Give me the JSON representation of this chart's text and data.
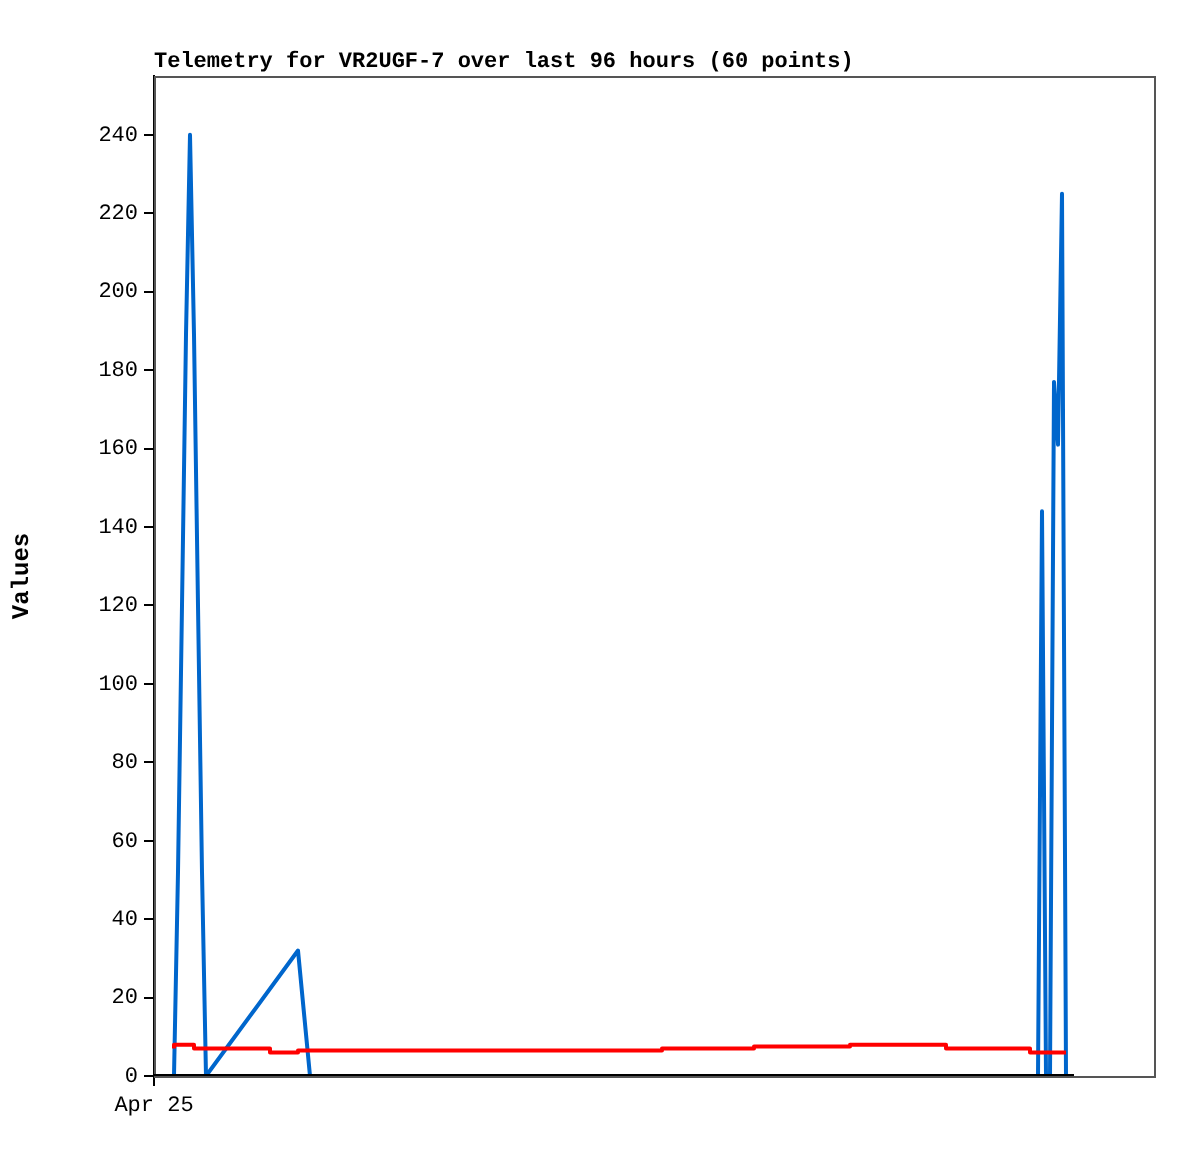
{
  "chart_data": {
    "type": "line",
    "title": "Telemetry for VR2UGF-7 over last 96 hours (60 points)",
    "ylabel": "Values",
    "categories": [
      "Apr 25",
      null,
      null,
      null,
      null,
      null,
      null,
      null,
      null,
      null,
      null,
      null,
      null,
      null,
      null,
      null,
      null,
      null,
      null,
      null,
      null,
      null,
      null,
      null,
      null,
      null,
      null,
      null,
      null,
      null,
      null,
      null,
      null,
      null,
      null,
      null,
      null,
      null,
      null,
      null,
      null,
      null,
      null,
      null,
      null,
      null,
      null,
      null,
      null,
      null,
      null,
      null,
      null,
      null,
      null,
      null,
      null,
      null,
      null,
      null,
      null,
      null,
      null,
      null,
      null,
      null,
      null,
      null,
      null,
      null,
      null,
      null,
      null,
      null,
      null,
      null,
      null,
      null,
      null,
      null,
      null,
      null,
      null,
      null,
      null,
      null,
      null,
      null,
      null,
      null,
      null,
      null,
      null,
      null,
      null,
      null,
      null,
      null,
      null,
      null,
      null,
      null,
      null,
      null,
      null,
      null,
      null,
      null,
      null,
      null,
      null,
      null,
      null,
      null,
      null,
      null,
      null,
      null,
      null,
      null,
      null,
      null,
      null,
      null,
      null,
      null,
      null,
      null,
      null,
      null,
      null,
      null,
      null,
      null,
      null,
      null,
      null,
      null,
      null,
      null,
      null,
      null,
      null,
      null,
      null,
      null,
      null,
      null,
      null,
      null,
      null,
      null,
      null,
      null,
      null,
      null,
      null,
      null,
      null,
      null,
      null,
      null,
      null,
      null,
      null,
      null,
      null,
      null,
      null,
      null,
      null,
      null,
      null,
      null,
      null,
      null,
      null,
      null,
      null,
      null,
      null,
      null,
      null,
      null,
      null,
      null,
      null,
      null,
      null,
      null,
      null,
      null,
      null,
      null,
      null,
      null,
      null,
      null,
      null,
      null,
      null,
      null,
      null,
      null,
      null,
      null,
      null,
      null,
      null,
      null,
      null,
      null,
      null,
      null,
      null,
      null,
      null,
      null,
      null,
      null,
      null,
      null,
      null,
      null,
      null,
      null,
      null,
      null,
      null,
      null,
      null
    ],
    "ylim": [
      0,
      255
    ],
    "yticks": [
      0,
      20,
      40,
      60,
      80,
      100,
      120,
      140,
      160,
      180,
      200,
      220,
      240
    ],
    "series": [
      {
        "color": "#000000",
        "values": [
          0,
          null,
          null,
          null,
          null,
          null,
          null,
          null,
          null,
          null,
          null,
          null,
          null,
          null,
          null,
          null,
          null,
          null,
          null,
          null,
          null,
          null,
          null,
          null,
          null,
          null,
          null,
          null,
          null,
          null,
          null,
          null,
          null,
          null,
          null,
          null,
          null,
          null,
          null,
          null,
          null,
          null,
          null,
          null,
          null,
          null,
          null,
          null,
          null,
          null,
          null,
          null,
          null,
          null,
          null,
          null,
          null,
          null,
          null,
          null,
          null,
          null,
          null,
          null,
          null,
          null,
          null,
          null,
          null,
          null,
          null,
          null,
          null,
          null,
          null,
          null,
          null,
          null,
          null,
          null,
          null,
          null,
          null,
          null,
          null,
          null,
          null,
          null,
          null,
          null,
          null,
          null,
          null,
          null,
          null,
          null,
          null,
          null,
          null,
          null,
          null,
          null,
          null,
          null,
          null,
          null,
          null,
          null,
          null,
          null,
          null,
          null,
          null,
          null,
          null,
          null,
          null,
          null,
          null,
          null,
          null,
          null,
          null,
          null,
          null,
          null,
          null,
          null,
          null,
          null,
          null,
          null,
          null,
          null,
          null,
          null,
          null,
          null,
          null,
          null,
          null,
          null,
          null,
          null,
          null,
          null,
          null,
          null,
          null,
          null,
          null,
          null,
          null,
          null,
          null,
          null,
          null,
          null,
          null,
          null,
          null,
          null,
          null,
          null,
          null,
          null,
          null,
          null,
          null,
          null,
          null,
          null,
          null,
          null,
          null,
          null,
          null,
          null,
          null,
          null,
          null,
          null,
          null,
          null,
          null,
          null,
          null,
          null,
          null,
          null,
          null,
          null,
          null,
          null,
          null,
          null,
          null,
          null,
          null,
          null,
          null,
          null,
          null,
          null,
          null,
          null,
          null,
          null,
          null,
          null,
          null,
          null,
          null,
          null,
          null,
          null,
          null,
          null,
          null,
          null,
          null,
          null,
          null,
          null,
          null,
          null,
          null,
          null,
          null,
          null,
          0
        ]
      },
      {
        "type": "step",
        "color": "#ff0000",
        "values": [
          null,
          null,
          null,
          null,
          null,
          7,
          null,
          null,
          null,
          null,
          8,
          null,
          null,
          null,
          null,
          null,
          null,
          null,
          null,
          null,
          null,
          null,
          null,
          null,
          null,
          null,
          null,
          null,
          null,
          7,
          null,
          null,
          null,
          null,
          null,
          null,
          6,
          null,
          null,
          null,
          null,
          null,
          null,
          null,
          null,
          null,
          null,
          null,
          null,
          null,
          null,
          null,
          null,
          null,
          null,
          null,
          null,
          null,
          null,
          null,
          null,
          null,
          null,
          null,
          null,
          null,
          null,
          null,
          null,
          null,
          null,
          null,
          null,
          null,
          null,
          null,
          null,
          null,
          null,
          null,
          null,
          null,
          null,
          null,
          null,
          null,
          null,
          null,
          null,
          null,
          null,
          null,
          null,
          null,
          null,
          null,
          null,
          null,
          null,
          null,
          null,
          null,
          null,
          null,
          null,
          null,
          null,
          null,
          null,
          null,
          null,
          null,
          null,
          null,
          null,
          null,
          null,
          null,
          null,
          null,
          null,
          null,
          null,
          null,
          null,
          null,
          null,
          6.5,
          null,
          null,
          null,
          null,
          null,
          null,
          null,
          null,
          null,
          null,
          null,
          null,
          null,
          null,
          null,
          null,
          null,
          null,
          null,
          null,
          null,
          null,
          7,
          null,
          null,
          null,
          null,
          null,
          null,
          null,
          null,
          null,
          null,
          null,
          null,
          null,
          null,
          null,
          null,
          null,
          null,
          null,
          null,
          null,
          null,
          null,
          7.5,
          null,
          null,
          null,
          null,
          null,
          null,
          null,
          null,
          null,
          null,
          null,
          null,
          null,
          null,
          null,
          null,
          null,
          null,
          null,
          null,
          null,
          null,
          null,
          8,
          null,
          null,
          null,
          null,
          null,
          null,
          null,
          null,
          null,
          null,
          null,
          null,
          null,
          null,
          null,
          null,
          null,
          null,
          null,
          null,
          7,
          null,
          null,
          null,
          null,
          null,
          6,
          null,
          null,
          6,
          null,
          null
        ]
      },
      {
        "color": "#0066cc",
        "values": [
          null,
          null,
          null,
          null,
          null,
          0,
          52,
          120,
          189,
          240,
          189,
          120,
          52,
          0,
          null,
          null,
          null,
          null,
          null,
          null,
          null,
          null,
          null,
          null,
          null,
          null,
          null,
          null,
          null,
          null,
          null,
          null,
          null,
          null,
          null,
          null,
          32,
          null,
          null,
          0,
          null,
          null,
          null,
          null,
          null,
          null,
          null,
          null,
          null,
          null,
          null,
          null,
          null,
          null,
          null,
          null,
          null,
          null,
          null,
          null,
          null,
          null,
          null,
          null,
          null,
          null,
          null,
          null,
          null,
          null,
          null,
          null,
          null,
          null,
          null,
          null,
          null,
          null,
          null,
          null,
          null,
          null,
          null,
          null,
          null,
          null,
          null,
          null,
          null,
          null,
          null,
          null,
          null,
          null,
          null,
          null,
          null,
          null,
          null,
          null,
          null,
          null,
          null,
          null,
          null,
          null,
          null,
          null,
          null,
          null,
          null,
          null,
          null,
          null,
          null,
          null,
          null,
          null,
          null,
          null,
          null,
          null,
          null,
          null,
          null,
          null,
          null,
          null,
          null,
          null,
          null,
          null,
          null,
          null,
          null,
          null,
          null,
          null,
          null,
          null,
          null,
          null,
          null,
          null,
          null,
          null,
          null,
          null,
          null,
          null,
          null,
          null,
          null,
          null,
          null,
          null,
          null,
          null,
          null,
          null,
          null,
          null,
          null,
          null,
          null,
          null,
          null,
          null,
          null,
          null,
          null,
          null,
          null,
          null,
          null,
          null,
          null,
          null,
          null,
          null,
          null,
          null,
          null,
          null,
          null,
          null,
          null,
          null,
          null,
          null,
          null,
          null,
          null,
          null,
          null,
          null,
          null,
          null,
          null,
          null,
          null,
          null,
          null,
          null,
          null,
          null,
          null,
          null,
          null,
          null,
          null,
          null,
          null,
          null,
          null,
          null,
          null,
          null,
          null,
          null,
          null,
          0,
          144,
          0,
          0,
          177,
          161,
          225,
          0,
          null,
          null
        ]
      }
    ]
  }
}
